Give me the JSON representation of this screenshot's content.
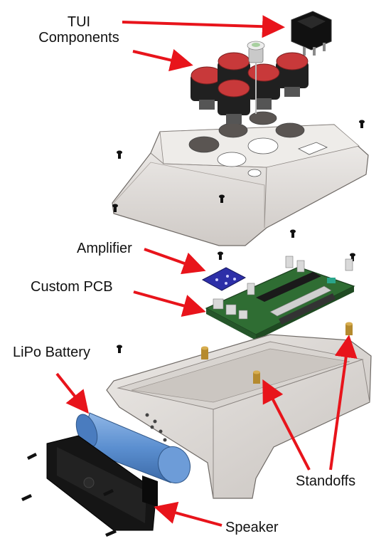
{
  "labels": {
    "tui_line1": "TUI",
    "tui_line2": "Components",
    "amplifier": "Amplifier",
    "pcb": "Custom PCB",
    "battery": "LiPo Battery",
    "standoffs": "Standoffs",
    "speaker": "Speaker"
  },
  "colors": {
    "arrow": "#e8141b",
    "enclosure": "#e7e4e1",
    "enclosure_edge": "#6f6a66",
    "button_red": "#c8393a",
    "pcb_green": "#2f6d33",
    "battery_blue": "#5b8fd0",
    "speaker_black": "#151515",
    "brass": "#b58a2e"
  }
}
